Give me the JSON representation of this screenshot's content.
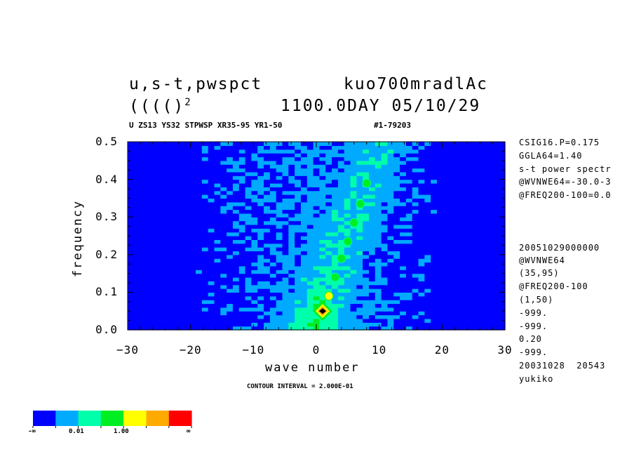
{
  "header": {
    "title_left": "u,s-t,pwspct",
    "title_right": "kuo700mradlAc",
    "line2_left": "(((()",
    "line2_sup": "2",
    "line2_right": "1100.0DAY 05/10/29",
    "subtitle_left": "U ZS13 YS32 STPWSP XR35-95 YR1-50",
    "subtitle_right": "#1-79203"
  },
  "side_notes": {
    "top": [
      "CSIG16.P=0.175",
      "GGLA64=1.40",
      "s-t power spectr",
      "@WVNWE64=-30.0-3",
      "@FREQ200-100=0.0"
    ],
    "bottom": [
      "20051029000000",
      "@WVNWE64",
      "(35,95)",
      "@FREQ200-100",
      "(1,50)",
      "-999.",
      "-999.",
      "0.20",
      "-999.",
      "20031028  20543",
      "yukiko"
    ]
  },
  "contour_note": "CONTOUR INTERVAL = 2.000E-01",
  "colorbar": {
    "colors": [
      "#0000ff",
      "#00aaff",
      "#00ffaa",
      "#00ee22",
      "#ffff00",
      "#ffaa00",
      "#ff0000"
    ],
    "labels": [
      "-∞",
      "0.01",
      "1.00",
      "∞"
    ]
  },
  "chart_data": {
    "type": "heatmap",
    "xlabel": "wave number",
    "ylabel": "frequency",
    "xlim": [
      -30,
      30
    ],
    "ylim": [
      0.0,
      0.5
    ],
    "xticks": [
      -30,
      -20,
      -10,
      0,
      10,
      20,
      30
    ],
    "xtick_labels": [
      "−30",
      "−20",
      "−10",
      "0",
      "10",
      "20",
      "30"
    ],
    "yticks": [
      0.0,
      0.1,
      0.2,
      0.3,
      0.4,
      0.5
    ],
    "ytick_labels": [
      "0.0",
      "0.1",
      "0.2",
      "0.3",
      "0.4",
      "0.5"
    ],
    "contour_interval": 0.2,
    "level_colors": [
      "#0000ff",
      "#00aaff",
      "#00ffaa",
      "#00ee22",
      "#ffff00",
      "#ffaa00",
      "#ff0000"
    ],
    "features": {
      "background_level": 0,
      "spectral_ridge": {
        "k_start": 0,
        "f_start": 0.05,
        "k_end": 11,
        "f_end": 0.5
      },
      "peak": {
        "k": 1,
        "f": 0.05,
        "level": 5
      },
      "ridge_blobs": [
        {
          "k": 2,
          "f": 0.09,
          "level": 4
        },
        {
          "k": 3,
          "f": 0.14,
          "level": 3
        },
        {
          "k": 4,
          "f": 0.19,
          "level": 3
        },
        {
          "k": 5,
          "f": 0.235,
          "level": 3
        },
        {
          "k": 6,
          "f": 0.285,
          "level": 3
        },
        {
          "k": 7,
          "f": 0.335,
          "level": 3
        },
        {
          "k": 8,
          "f": 0.39,
          "level": 3
        }
      ]
    }
  }
}
